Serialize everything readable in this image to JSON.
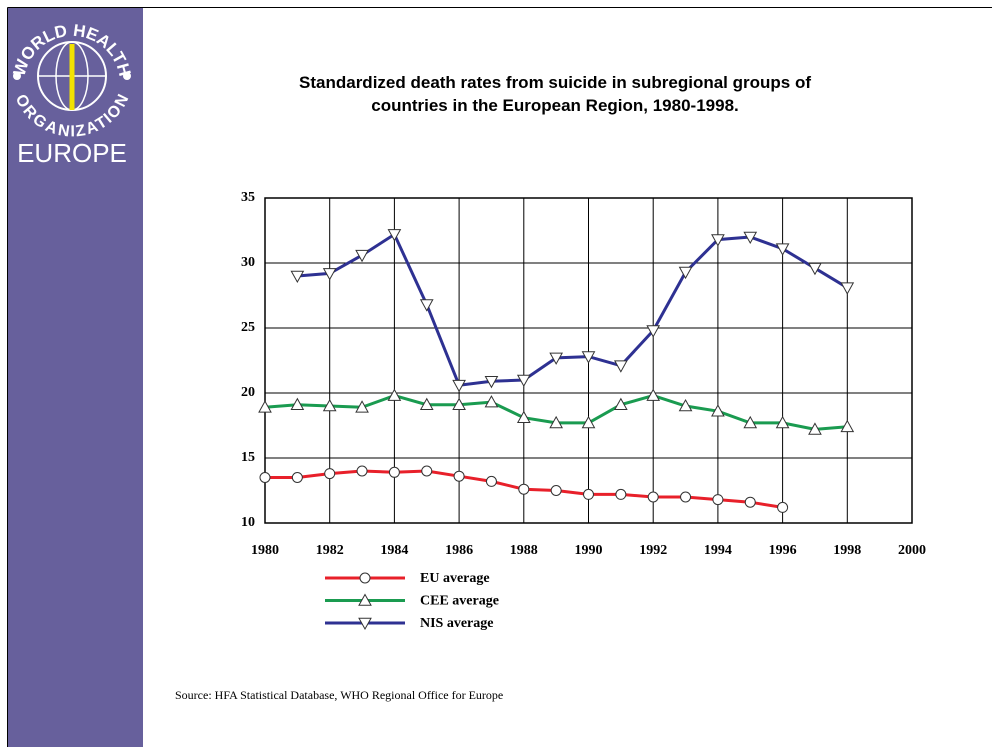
{
  "logo": {
    "top": "WORLD HEALTH",
    "bottom": "ORGANIZATION",
    "region": "EUROPE"
  },
  "chart_data": {
    "type": "line",
    "title": [
      "Standardized death rates from suicide in subregional groups of",
      "countries in the European Region, 1980-1998."
    ],
    "x": [
      1980,
      1981,
      1982,
      1983,
      1984,
      1985,
      1986,
      1987,
      1988,
      1989,
      1990,
      1991,
      1992,
      1993,
      1994,
      1995,
      1996,
      1997,
      1998
    ],
    "series": [
      {
        "name": "EU average",
        "color": "#e8202a",
        "marker": "circle",
        "values": [
          13.5,
          13.5,
          13.8,
          14.0,
          13.9,
          14.0,
          13.6,
          13.2,
          12.6,
          12.5,
          12.2,
          12.2,
          12.0,
          12.0,
          11.8,
          11.6,
          11.2,
          null,
          null
        ]
      },
      {
        "name": "CEE average",
        "color": "#1a9b50",
        "marker": "triangle-up",
        "values": [
          18.9,
          19.1,
          19.0,
          18.9,
          19.8,
          19.1,
          19.1,
          19.3,
          18.1,
          17.7,
          17.7,
          19.1,
          19.8,
          19.0,
          18.6,
          17.7,
          17.7,
          17.2,
          17.4
        ]
      },
      {
        "name": "NIS average",
        "color": "#2e3192",
        "marker": "triangle-down",
        "values": [
          null,
          29.0,
          29.2,
          30.6,
          32.2,
          26.8,
          20.6,
          20.9,
          21.0,
          22.7,
          22.8,
          22.1,
          24.8,
          29.3,
          31.8,
          32.0,
          31.1,
          29.6,
          28.1
        ]
      }
    ],
    "xlim": [
      1980,
      2000
    ],
    "xticks": [
      1980,
      1982,
      1984,
      1986,
      1988,
      1990,
      1992,
      1994,
      1996,
      1998,
      2000
    ],
    "ylim": [
      10,
      35
    ],
    "yticks": [
      10,
      15,
      20,
      25,
      30,
      35
    ],
    "grid": true,
    "source": "Source: HFA Statistical Database, WHO Regional Office for Europe"
  }
}
